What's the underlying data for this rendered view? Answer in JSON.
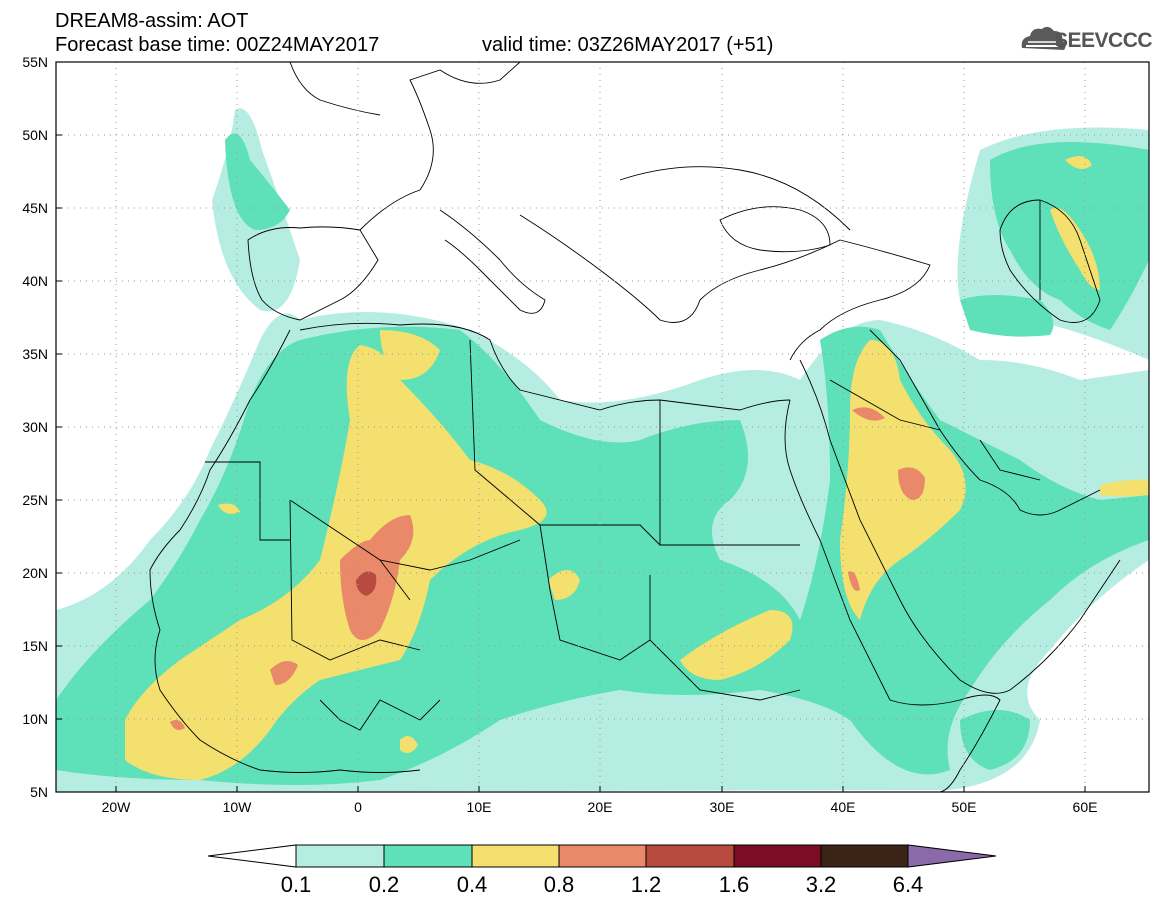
{
  "header": {
    "title": "DREAM8-assim: AOT",
    "base_time": "Forecast base time: 00Z24MAY2017",
    "valid_time": "valid time: 03Z26MAY2017 (+51)"
  },
  "logo": {
    "text": "SEEVCCC",
    "icon": "cloud-icon"
  },
  "map": {
    "lon_range": [
      -25,
      65
    ],
    "lat_range": [
      5,
      55
    ],
    "lat_ticks": [
      "5N",
      "10N",
      "15N",
      "20N",
      "25N",
      "30N",
      "35N",
      "40N",
      "45N",
      "50N",
      "55N"
    ],
    "lon_ticks": [
      "20W",
      "10W",
      "0",
      "10E",
      "20E",
      "30E",
      "40E",
      "50E",
      "60E"
    ]
  },
  "colorbar": {
    "labels": [
      "0.1",
      "0.2",
      "0.4",
      "0.8",
      "1.2",
      "1.6",
      "3.2",
      "6.4"
    ],
    "colors": [
      "#ffffff",
      "#b6ede3",
      "#5ee0b8",
      "#f3e06e",
      "#e9896a",
      "#b84a3f",
      "#7a0c25",
      "#3b2416",
      "#8a6aa8"
    ]
  }
}
